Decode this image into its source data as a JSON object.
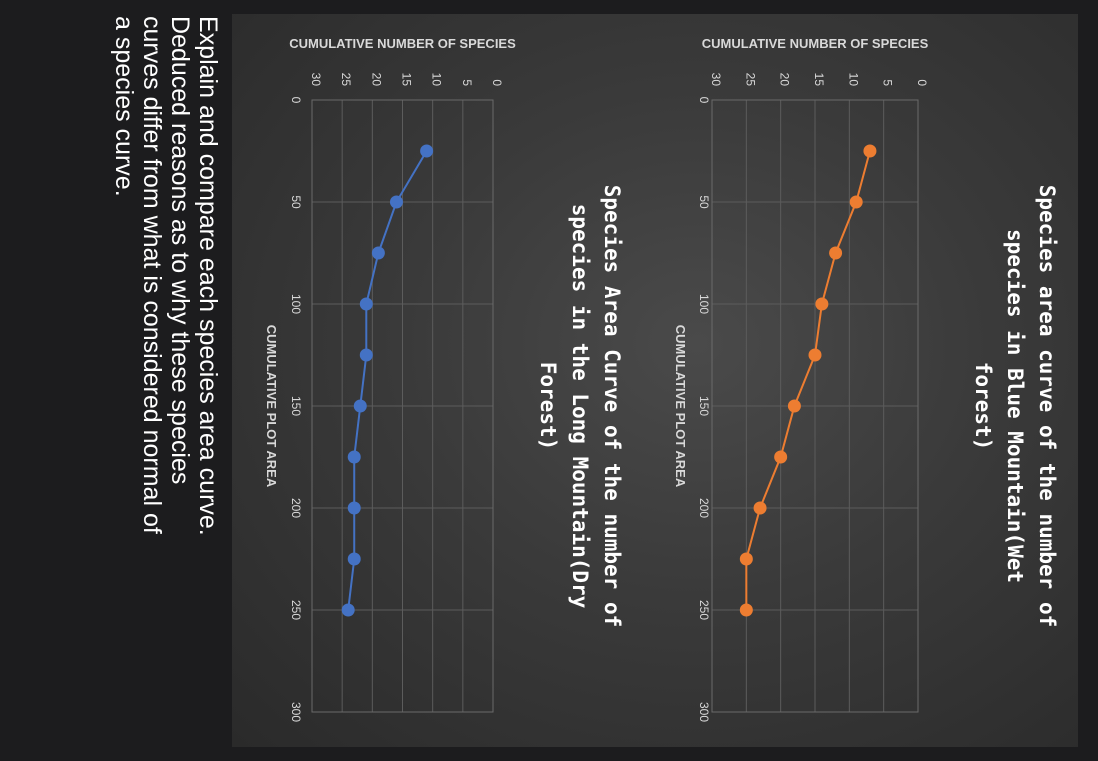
{
  "question": {
    "text": "Explain and compare each species area curve.\nDeduced reasons as to why these species\ncurves differ from what is considered normal of\na species curve."
  },
  "chart_data": [
    {
      "type": "line",
      "title": "Species area curve of the number of species in Blue Mountain(Wet forest)",
      "title_lines": [
        "Species area curve of the number of",
        "species in Blue Mountain(Wet",
        "forest)"
      ],
      "xlabel": "CUMULATIVE PLOT AREA",
      "ylabel": "CUMULATIVE NUMBER OF SPECIES",
      "x": [
        25,
        50,
        75,
        100,
        125,
        150,
        175,
        200,
        225,
        250
      ],
      "series": [
        {
          "values": [
            7,
            9,
            12,
            14,
            15,
            18,
            20,
            23,
            25,
            25
          ]
        }
      ],
      "xlim": [
        0,
        300
      ],
      "ylim": [
        0,
        30
      ],
      "xticks": [
        0,
        50,
        100,
        150,
        200,
        250,
        300
      ],
      "yticks": [
        0,
        5,
        10,
        15,
        20,
        25,
        30
      ],
      "grid": true,
      "color": "#ED7D31"
    },
    {
      "type": "line",
      "title": "Species Area Curve of the number of species in the Long Mountain(Dry Forest)",
      "title_lines": [
        "Species Area Curve of the number of",
        "species in the Long Mountain(Dry",
        "Forest)"
      ],
      "xlabel": "CUMULATIVE PLOT AREA",
      "ylabel": "CUMULATIVE NUMBER OF SPECIES",
      "x": [
        25,
        50,
        75,
        100,
        125,
        150,
        175,
        200,
        225,
        250
      ],
      "series": [
        {
          "values": [
            11,
            16,
            19,
            21,
            21,
            22,
            23,
            23,
            23,
            24
          ]
        }
      ],
      "xlim": [
        0,
        300
      ],
      "ylim": [
        0,
        30
      ],
      "xticks": [
        0,
        50,
        100,
        150,
        200,
        250,
        300
      ],
      "yticks": [
        0,
        5,
        10,
        15,
        20,
        25,
        30
      ],
      "grid": true,
      "color": "#4472C4"
    }
  ]
}
